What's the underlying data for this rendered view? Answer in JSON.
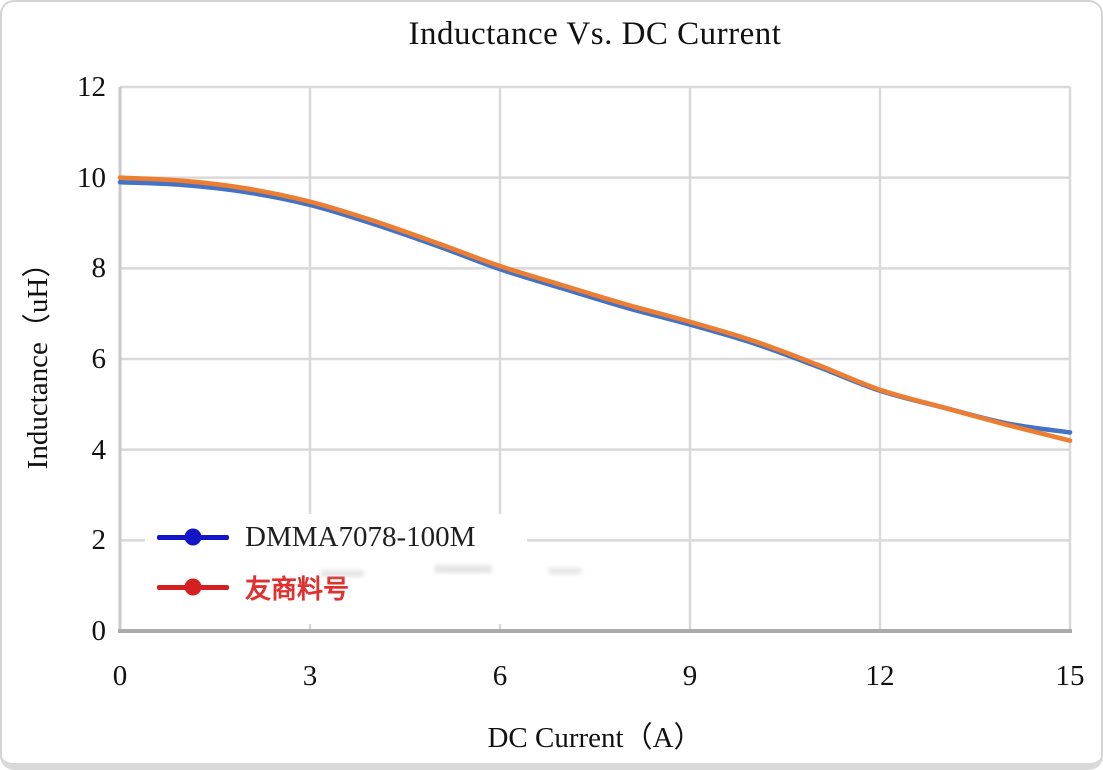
{
  "figure": {
    "title": "Inductance Vs. DC Current",
    "x_axis_title": "DC Current（A）",
    "y_axis_title": "Inductance（uH）"
  },
  "legend": {
    "items": [
      {
        "label": "DMMA7078-100M",
        "marker_color": "#1414c8",
        "text_color": "#1f1f1f"
      },
      {
        "label": "友商料号",
        "marker_color": "#d42020",
        "text_color": "#e03030"
      }
    ]
  },
  "chart_data": {
    "type": "line",
    "title": "Inductance Vs. DC Current",
    "xlabel": "DC Current（A）",
    "ylabel": "Inductance（uH）",
    "xlim": [
      0,
      15
    ],
    "ylim": [
      0,
      12
    ],
    "x_ticks": [
      0,
      3,
      6,
      9,
      12,
      15
    ],
    "y_ticks": [
      0,
      2,
      4,
      6,
      8,
      10,
      12
    ],
    "grid": true,
    "legend_position": "inside-bottom-left",
    "x": [
      0,
      1,
      2,
      3,
      4,
      5,
      6,
      7,
      8,
      9,
      10,
      11,
      12,
      13,
      14,
      15
    ],
    "series": [
      {
        "name": "DMMA7078-100M",
        "color": "#4472c4",
        "values": [
          9.9,
          9.84,
          9.68,
          9.4,
          8.98,
          8.5,
          7.98,
          7.55,
          7.13,
          6.76,
          6.35,
          5.84,
          5.3,
          4.93,
          4.58,
          4.38
        ]
      },
      {
        "name": "友商料号",
        "color": "#ed7d31",
        "values": [
          10.0,
          9.93,
          9.76,
          9.47,
          9.05,
          8.56,
          8.05,
          7.62,
          7.2,
          6.82,
          6.4,
          5.88,
          5.32,
          4.93,
          4.55,
          4.2
        ]
      }
    ],
    "grid_color": "#d9d9d9",
    "axis_color": "#ababab"
  }
}
